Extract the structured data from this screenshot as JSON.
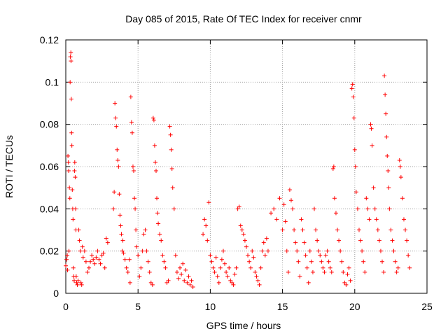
{
  "chart_data": {
    "type": "scatter",
    "title": "Day 085 of 2015, Rate Of TEC Index for receiver cnmr",
    "xlabel": "GPS time / hours",
    "ylabel": "ROTI / TECUs",
    "xlim": [
      0,
      25
    ],
    "ylim": [
      0,
      0.12
    ],
    "grid": true,
    "marker": "+",
    "marker_color": "#ff0000",
    "x_ticks": [
      0,
      5,
      10,
      15,
      20,
      25
    ],
    "y_ticks": [
      0,
      0.02,
      0.04,
      0.06,
      0.08,
      0.1,
      0.12
    ],
    "x_tick_labels": [
      "0",
      "5",
      "10",
      "15",
      "20",
      "25"
    ],
    "y_tick_labels": [
      "0",
      "0.02",
      "0.04",
      "0.06",
      "0.08",
      "0.1",
      "0.12"
    ],
    "series": [
      {
        "name": "ROTI",
        "points": [
          [
            0.0,
            0.013
          ],
          [
            0.05,
            0.016
          ],
          [
            0.1,
            0.018
          ],
          [
            0.12,
            0.011
          ],
          [
            0.15,
            0.065
          ],
          [
            0.18,
            0.062
          ],
          [
            0.2,
            0.058
          ],
          [
            0.22,
            0.02
          ],
          [
            0.25,
            0.05
          ],
          [
            0.28,
            0.045
          ],
          [
            0.3,
            0.1
          ],
          [
            0.32,
            0.112
          ],
          [
            0.35,
            0.114
          ],
          [
            0.36,
            0.11
          ],
          [
            0.38,
            0.092
          ],
          [
            0.4,
            0.076
          ],
          [
            0.42,
            0.07
          ],
          [
            0.45,
            0.049
          ],
          [
            0.48,
            0.04
          ],
          [
            0.5,
            0.035
          ],
          [
            0.52,
            0.012
          ],
          [
            0.55,
            0.008
          ],
          [
            0.58,
            0.006
          ],
          [
            0.6,
            0.058
          ],
          [
            0.62,
            0.062
          ],
          [
            0.65,
            0.055
          ],
          [
            0.68,
            0.04
          ],
          [
            0.7,
            0.03
          ],
          [
            0.72,
            0.008
          ],
          [
            0.75,
            0.005
          ],
          [
            0.8,
            0.004
          ],
          [
            0.85,
            0.006
          ],
          [
            0.9,
            0.03
          ],
          [
            0.95,
            0.025
          ],
          [
            1.0,
            0.02
          ],
          [
            1.05,
            0.005
          ],
          [
            1.1,
            0.004
          ],
          [
            1.15,
            0.022
          ],
          [
            1.2,
            0.017
          ],
          [
            1.3,
            0.02
          ],
          [
            1.4,
            0.015
          ],
          [
            1.5,
            0.01
          ],
          [
            1.6,
            0.012
          ],
          [
            1.7,
            0.015
          ],
          [
            1.8,
            0.018
          ],
          [
            1.9,
            0.016
          ],
          [
            2.0,
            0.014
          ],
          [
            2.1,
            0.017
          ],
          [
            2.2,
            0.02
          ],
          [
            2.3,
            0.016
          ],
          [
            2.4,
            0.014
          ],
          [
            2.5,
            0.018
          ],
          [
            2.6,
            0.019
          ],
          [
            2.7,
            0.012
          ],
          [
            2.8,
            0.026
          ],
          [
            2.9,
            0.024
          ],
          [
            3.3,
            0.04
          ],
          [
            3.35,
            0.048
          ],
          [
            3.4,
            0.09
          ],
          [
            3.45,
            0.083
          ],
          [
            3.5,
            0.079
          ],
          [
            3.55,
            0.068
          ],
          [
            3.6,
            0.063
          ],
          [
            3.65,
            0.06
          ],
          [
            3.7,
            0.047
          ],
          [
            3.75,
            0.037
          ],
          [
            3.8,
            0.032
          ],
          [
            3.85,
            0.028
          ],
          [
            3.9,
            0.02
          ],
          [
            3.95,
            0.025
          ],
          [
            4.0,
            0.019
          ],
          [
            4.1,
            0.016
          ],
          [
            4.2,
            0.012
          ],
          [
            4.3,
            0.01
          ],
          [
            4.4,
            0.016
          ],
          [
            4.45,
            0.005
          ],
          [
            4.5,
            0.093
          ],
          [
            4.55,
            0.081
          ],
          [
            4.6,
            0.076
          ],
          [
            4.65,
            0.06
          ],
          [
            4.7,
            0.058
          ],
          [
            4.75,
            0.045
          ],
          [
            4.8,
            0.04
          ],
          [
            4.85,
            0.03
          ],
          [
            4.9,
            0.022
          ],
          [
            5.0,
            0.018
          ],
          [
            5.1,
            0.008
          ],
          [
            5.2,
            0.012
          ],
          [
            5.3,
            0.02
          ],
          [
            5.4,
            0.028
          ],
          [
            5.5,
            0.03
          ],
          [
            5.6,
            0.02
          ],
          [
            5.7,
            0.015
          ],
          [
            5.8,
            0.01
          ],
          [
            5.9,
            0.005
          ],
          [
            6.0,
            0.004
          ],
          [
            6.05,
            0.083
          ],
          [
            6.1,
            0.082
          ],
          [
            6.15,
            0.07
          ],
          [
            6.2,
            0.062
          ],
          [
            6.25,
            0.058
          ],
          [
            6.3,
            0.045
          ],
          [
            6.35,
            0.038
          ],
          [
            6.4,
            0.033
          ],
          [
            6.5,
            0.028
          ],
          [
            6.6,
            0.025
          ],
          [
            6.7,
            0.018
          ],
          [
            6.8,
            0.015
          ],
          [
            6.9,
            0.012
          ],
          [
            7.0,
            0.005
          ],
          [
            7.1,
            0.006
          ],
          [
            7.2,
            0.079
          ],
          [
            7.25,
            0.075
          ],
          [
            7.3,
            0.068
          ],
          [
            7.35,
            0.059
          ],
          [
            7.4,
            0.05
          ],
          [
            7.5,
            0.04
          ],
          [
            7.6,
            0.018
          ],
          [
            7.7,
            0.01
          ],
          [
            7.8,
            0.007
          ],
          [
            7.9,
            0.012
          ],
          [
            8.0,
            0.009
          ],
          [
            8.1,
            0.014
          ],
          [
            8.2,
            0.006
          ],
          [
            8.3,
            0.011
          ],
          [
            8.4,
            0.005
          ],
          [
            8.5,
            0.008
          ],
          [
            8.6,
            0.004
          ],
          [
            8.7,
            0.006
          ],
          [
            8.8,
            0.003
          ],
          [
            9.5,
            0.028
          ],
          [
            9.6,
            0.035
          ],
          [
            9.7,
            0.032
          ],
          [
            9.8,
            0.025
          ],
          [
            9.9,
            0.043
          ],
          [
            10.0,
            0.018
          ],
          [
            10.1,
            0.015
          ],
          [
            10.2,
            0.012
          ],
          [
            10.3,
            0.01
          ],
          [
            10.4,
            0.017
          ],
          [
            10.5,
            0.008
          ],
          [
            10.6,
            0.005
          ],
          [
            10.7,
            0.012
          ],
          [
            10.8,
            0.016
          ],
          [
            10.9,
            0.02
          ],
          [
            11.0,
            0.014
          ],
          [
            11.1,
            0.01
          ],
          [
            11.2,
            0.008
          ],
          [
            11.3,
            0.012
          ],
          [
            11.4,
            0.006
          ],
          [
            11.5,
            0.005
          ],
          [
            11.6,
            0.004
          ],
          [
            11.7,
            0.009
          ],
          [
            11.8,
            0.012
          ],
          [
            11.9,
            0.04
          ],
          [
            12.0,
            0.041
          ],
          [
            12.1,
            0.032
          ],
          [
            12.2,
            0.03
          ],
          [
            12.3,
            0.028
          ],
          [
            12.4,
            0.025
          ],
          [
            12.5,
            0.022
          ],
          [
            12.6,
            0.018
          ],
          [
            12.7,
            0.015
          ],
          [
            12.8,
            0.012
          ],
          [
            12.9,
            0.02
          ],
          [
            13.0,
            0.017
          ],
          [
            13.1,
            0.01
          ],
          [
            13.2,
            0.008
          ],
          [
            13.3,
            0.006
          ],
          [
            13.4,
            0.004
          ],
          [
            13.5,
            0.012
          ],
          [
            13.6,
            0.02
          ],
          [
            13.7,
            0.024
          ],
          [
            13.8,
            0.018
          ],
          [
            13.9,
            0.026
          ],
          [
            14.0,
            0.02
          ],
          [
            14.2,
            0.038
          ],
          [
            14.4,
            0.04
          ],
          [
            14.6,
            0.035
          ],
          [
            14.8,
            0.045
          ],
          [
            15.0,
            0.03
          ],
          [
            15.1,
            0.042
          ],
          [
            15.2,
            0.034
          ],
          [
            15.3,
            0.02
          ],
          [
            15.4,
            0.01
          ],
          [
            15.5,
            0.049
          ],
          [
            15.6,
            0.044
          ],
          [
            15.7,
            0.04
          ],
          [
            15.8,
            0.03
          ],
          [
            15.9,
            0.024
          ],
          [
            16.0,
            0.02
          ],
          [
            16.1,
            0.015
          ],
          [
            16.2,
            0.008
          ],
          [
            16.3,
            0.035
          ],
          [
            16.4,
            0.03
          ],
          [
            16.5,
            0.024
          ],
          [
            16.6,
            0.018
          ],
          [
            16.7,
            0.012
          ],
          [
            16.8,
            0.005
          ],
          [
            16.9,
            0.02
          ],
          [
            17.0,
            0.015
          ],
          [
            17.1,
            0.01
          ],
          [
            17.2,
            0.04
          ],
          [
            17.3,
            0.03
          ],
          [
            17.4,
            0.025
          ],
          [
            17.5,
            0.02
          ],
          [
            17.6,
            0.018
          ],
          [
            17.7,
            0.015
          ],
          [
            17.8,
            0.012
          ],
          [
            17.9,
            0.01
          ],
          [
            18.0,
            0.018
          ],
          [
            18.1,
            0.02
          ],
          [
            18.2,
            0.015
          ],
          [
            18.3,
            0.012
          ],
          [
            18.4,
            0.01
          ],
          [
            18.5,
            0.059
          ],
          [
            18.55,
            0.06
          ],
          [
            18.6,
            0.045
          ],
          [
            18.7,
            0.038
          ],
          [
            18.8,
            0.03
          ],
          [
            18.9,
            0.025
          ],
          [
            19.0,
            0.02
          ],
          [
            19.1,
            0.015
          ],
          [
            19.2,
            0.01
          ],
          [
            19.3,
            0.005
          ],
          [
            19.4,
            0.004
          ],
          [
            19.5,
            0.009
          ],
          [
            19.6,
            0.012
          ],
          [
            19.7,
            0.006
          ],
          [
            19.8,
            0.097
          ],
          [
            19.85,
            0.099
          ],
          [
            19.9,
            0.093
          ],
          [
            19.95,
            0.083
          ],
          [
            20.0,
            0.068
          ],
          [
            20.05,
            0.06
          ],
          [
            20.1,
            0.048
          ],
          [
            20.2,
            0.04
          ],
          [
            20.3,
            0.03
          ],
          [
            20.4,
            0.025
          ],
          [
            20.5,
            0.02
          ],
          [
            20.6,
            0.015
          ],
          [
            20.7,
            0.01
          ],
          [
            20.8,
            0.045
          ],
          [
            20.9,
            0.04
          ],
          [
            21.0,
            0.035
          ],
          [
            21.1,
            0.08
          ],
          [
            21.15,
            0.078
          ],
          [
            21.2,
            0.07
          ],
          [
            21.3,
            0.05
          ],
          [
            21.4,
            0.04
          ],
          [
            21.5,
            0.035
          ],
          [
            21.6,
            0.03
          ],
          [
            21.7,
            0.025
          ],
          [
            21.8,
            0.02
          ],
          [
            21.9,
            0.015
          ],
          [
            22.0,
            0.01
          ],
          [
            22.05,
            0.103
          ],
          [
            22.1,
            0.094
          ],
          [
            22.15,
            0.085
          ],
          [
            22.2,
            0.074
          ],
          [
            22.25,
            0.065
          ],
          [
            22.3,
            0.058
          ],
          [
            22.35,
            0.05
          ],
          [
            22.4,
            0.04
          ],
          [
            22.5,
            0.03
          ],
          [
            22.6,
            0.025
          ],
          [
            22.7,
            0.02
          ],
          [
            22.8,
            0.015
          ],
          [
            22.9,
            0.01
          ],
          [
            23.0,
            0.012
          ],
          [
            23.1,
            0.063
          ],
          [
            23.15,
            0.06
          ],
          [
            23.2,
            0.055
          ],
          [
            23.3,
            0.045
          ],
          [
            23.4,
            0.035
          ],
          [
            23.5,
            0.03
          ],
          [
            23.6,
            0.025
          ],
          [
            23.7,
            0.018
          ],
          [
            23.8,
            0.012
          ]
        ]
      }
    ]
  }
}
